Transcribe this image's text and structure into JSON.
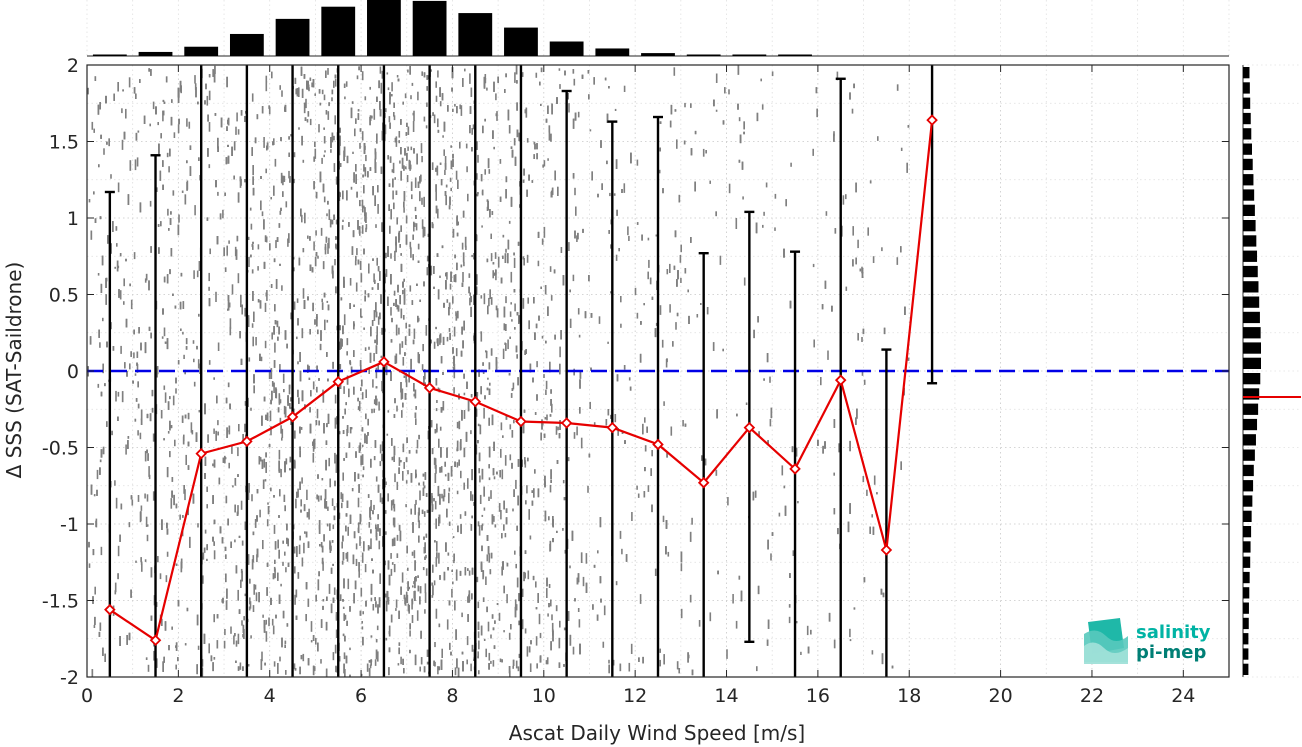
{
  "chart_data": {
    "type": "scatter",
    "xlabel": "Ascat Daily Wind Speed [m/s]",
    "ylabel": "Δ SSS (SAT-Saildrone)",
    "xlim": [
      0,
      25
    ],
    "ylim": [
      -2,
      2
    ],
    "xticks": [
      0,
      2,
      4,
      6,
      8,
      10,
      12,
      14,
      16,
      18,
      20,
      22,
      24
    ],
    "yticks": [
      -2,
      -1.5,
      -1,
      -0.5,
      0,
      0.5,
      1,
      1.5,
      2
    ],
    "grid": true,
    "zero_line": {
      "y": 0,
      "color": "#0000e6",
      "style": "dashed"
    },
    "binned_mean": {
      "color": "#e60000",
      "x": [
        0.5,
        1.5,
        2.5,
        3.5,
        4.5,
        5.5,
        6.5,
        7.5,
        8.5,
        9.5,
        10.5,
        11.5,
        12.5,
        13.5,
        14.5,
        15.5,
        16.5,
        17.5,
        18.5
      ],
      "y": [
        -1.56,
        -1.76,
        -0.54,
        -0.46,
        -0.3,
        -0.07,
        0.06,
        -0.11,
        -0.2,
        -0.33,
        -0.34,
        -0.37,
        -0.48,
        -0.73,
        -0.37,
        -0.64,
        -0.06,
        -1.17,
        1.64
      ]
    },
    "error_bars": {
      "color": "#000000",
      "x": [
        0.5,
        1.5,
        2.5,
        3.5,
        4.5,
        5.5,
        6.5,
        7.5,
        8.5,
        9.5,
        10.5,
        11.5,
        12.5,
        13.5,
        14.5,
        15.5,
        16.5,
        17.5,
        18.5
      ],
      "low": [
        -2.0,
        -2.0,
        -2.0,
        -2.0,
        -2.0,
        -2.0,
        -2.0,
        -2.0,
        -2.0,
        -2.0,
        -2.0,
        -2.0,
        -2.0,
        -2.0,
        -1.77,
        -2.0,
        -2.0,
        -2.0,
        -0.08
      ],
      "high": [
        1.17,
        1.41,
        2.0,
        2.0,
        2.0,
        2.0,
        2.0,
        2.0,
        2.0,
        2.0,
        1.83,
        1.63,
        1.66,
        0.77,
        1.04,
        0.78,
        1.91,
        0.14,
        2.0
      ]
    },
    "scatter_density": {
      "color": "#7f7f7f",
      "x_range": [
        0,
        18
      ],
      "y_range": [
        -2,
        2
      ],
      "peak_x": 6.5
    },
    "x_histogram": {
      "bin_centers": [
        0.5,
        1.5,
        2.5,
        3.5,
        4.5,
        5.5,
        6.5,
        7.5,
        8.5,
        9.5,
        10.5,
        11.5,
        12.5,
        13.5,
        14.5,
        15.5
      ],
      "relative_counts": [
        0.02,
        0.07,
        0.16,
        0.38,
        0.64,
        0.85,
        1.0,
        0.95,
        0.74,
        0.49,
        0.25,
        0.13,
        0.05,
        0.02,
        0.01,
        0.01
      ]
    },
    "y_histogram": {
      "bin_step": 0.1,
      "relative_counts": [
        0.3,
        0.3,
        0.3,
        0.32,
        0.33,
        0.35,
        0.37,
        0.4,
        0.42,
        0.45,
        0.48,
        0.52,
        0.56,
        0.6,
        0.66,
        0.72,
        0.78,
        0.84,
        0.9,
        0.96,
        1.0,
        1.0,
        0.98,
        0.94,
        0.9,
        0.86,
        0.82,
        0.78,
        0.74,
        0.7,
        0.66,
        0.62,
        0.58,
        0.54,
        0.5,
        0.46,
        0.43,
        0.4,
        0.38,
        0.36
      ]
    },
    "median_marker": {
      "y": -0.17,
      "color": "#e60000"
    }
  },
  "logo": {
    "line1": "salinity",
    "line2": "pi-mep",
    "color_top": "#00b3a4",
    "color_bottom": "#007f75"
  }
}
